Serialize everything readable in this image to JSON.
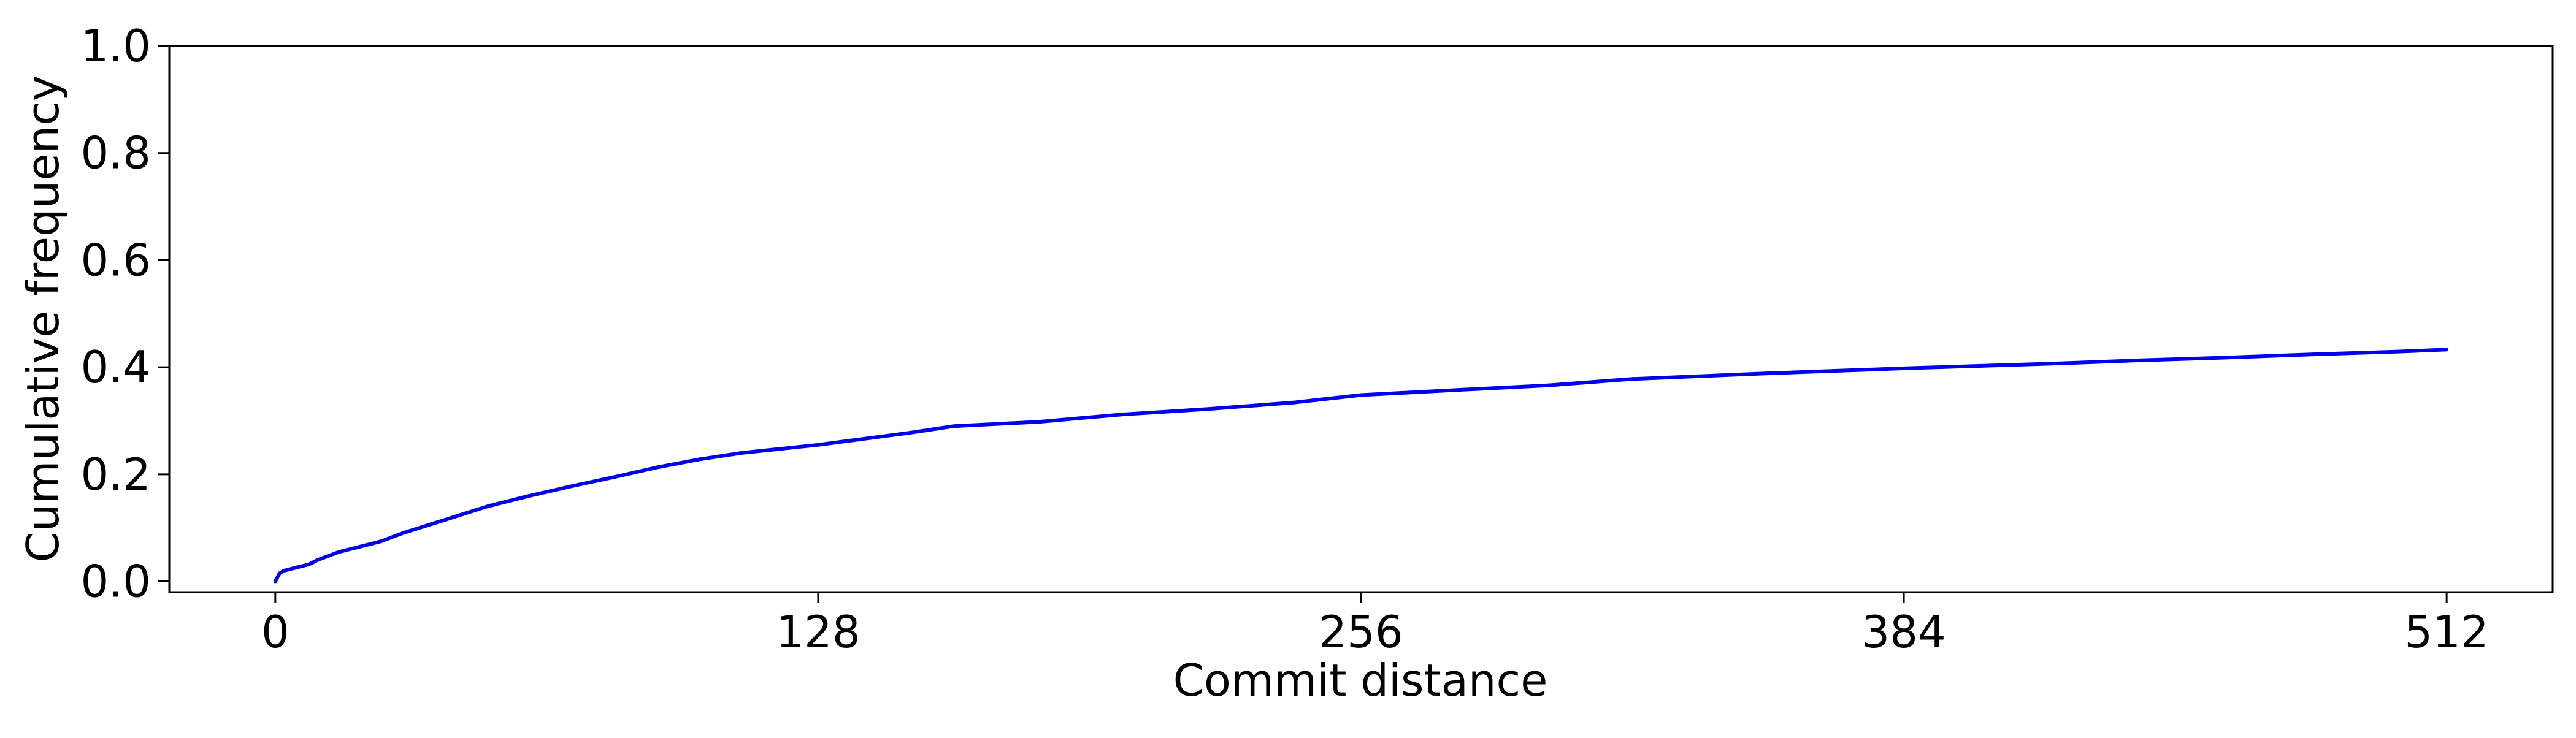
{
  "chart_data": {
    "type": "line",
    "title": "",
    "xlabel": "Commit distance",
    "ylabel": "Cumulative frequency",
    "xlim": [
      -25,
      537
    ],
    "ylim": [
      -0.02,
      1.0
    ],
    "xticks": [
      0,
      128,
      256,
      384,
      512
    ],
    "xtick_labels": [
      "0",
      "128",
      "256",
      "384",
      "512"
    ],
    "yticks": [
      0.0,
      0.2,
      0.4,
      0.6,
      0.8,
      1.0
    ],
    "ytick_labels": [
      "0.0",
      "0.2",
      "0.4",
      "0.6",
      "0.8",
      "1.0"
    ],
    "grid": false,
    "legend": "none",
    "series": [
      {
        "color": "#0000ee",
        "x": [
          0,
          1,
          2,
          5,
          8,
          10,
          12,
          15,
          20,
          25,
          30,
          40,
          50,
          60,
          70,
          80,
          90,
          100,
          110,
          128,
          150,
          160,
          180,
          200,
          220,
          240,
          256,
          280,
          300,
          320,
          350,
          384,
          400,
          420,
          440,
          460,
          480,
          500,
          512
        ],
        "y": [
          0.0,
          0.015,
          0.02,
          0.026,
          0.032,
          0.04,
          0.046,
          0.055,
          0.065,
          0.075,
          0.09,
          0.115,
          0.14,
          0.16,
          0.178,
          0.195,
          0.213,
          0.228,
          0.24,
          0.255,
          0.278,
          0.29,
          0.298,
          0.312,
          0.322,
          0.334,
          0.348,
          0.358,
          0.366,
          0.378,
          0.388,
          0.398,
          0.402,
          0.407,
          0.413,
          0.418,
          0.424,
          0.429,
          0.433
        ]
      }
    ]
  }
}
